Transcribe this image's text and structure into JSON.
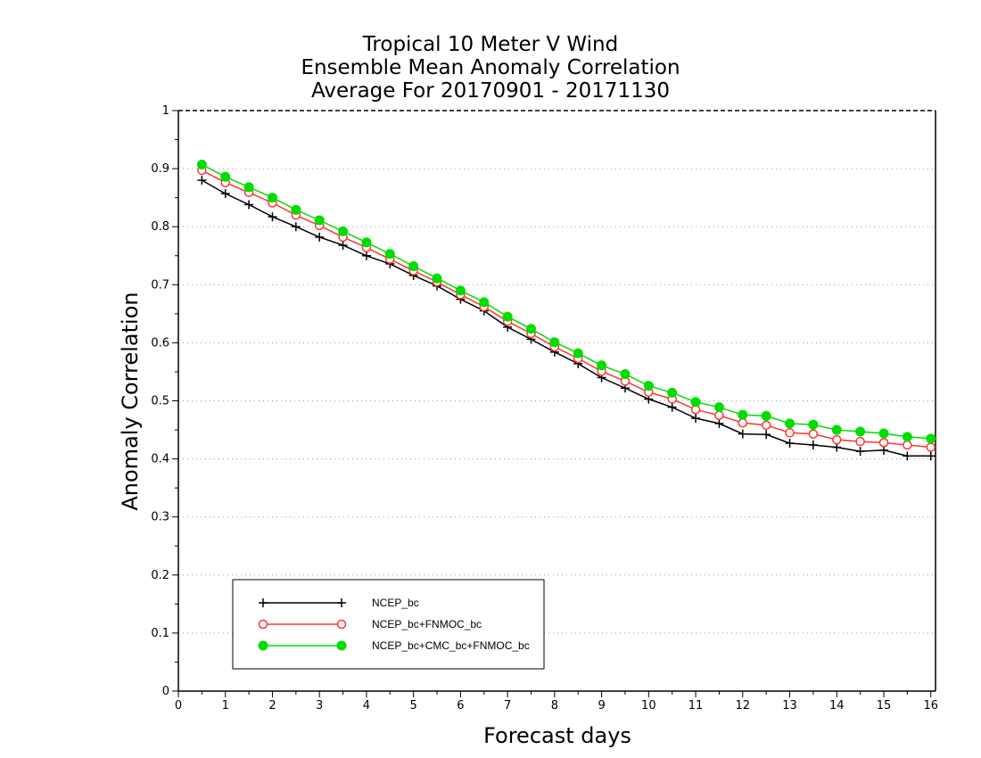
{
  "chart_data": {
    "type": "line",
    "title": [
      "Tropical 10 Meter V Wind",
      "Ensemble Mean Anomaly Correlation",
      "Average For 20170901 - 20171130"
    ],
    "xlabel": "Forecast days",
    "ylabel": "Anomaly Correlation",
    "xlim": [
      0,
      16.1
    ],
    "ylim": [
      0,
      1
    ],
    "x_ticks": [
      "0",
      "1",
      "2",
      "3",
      "4",
      "5",
      "6",
      "7",
      "8",
      "9",
      "10",
      "11",
      "12",
      "13",
      "14",
      "15",
      "16"
    ],
    "y_ticks": [
      "0",
      "0.1",
      "0.2",
      "0.3",
      "0.4",
      "0.5",
      "0.6",
      "0.7",
      "0.8",
      "0.9",
      "1"
    ],
    "grid": "horizontal dotted",
    "legend_position": "bottom-left",
    "x": [
      0.5,
      1,
      1.5,
      2,
      2.5,
      3,
      3.5,
      4,
      4.5,
      5,
      5.5,
      6,
      6.5,
      7,
      7.5,
      8,
      8.5,
      9,
      9.5,
      10,
      10.5,
      11,
      11.5,
      12,
      12.5,
      13,
      13.5,
      14,
      14.5,
      15,
      15.5,
      16
    ],
    "series": [
      {
        "name": "NCEP_bc",
        "color": "#000000",
        "marker": "plus",
        "values": [
          0.88,
          0.857,
          0.838,
          0.817,
          0.8,
          0.782,
          0.768,
          0.75,
          0.736,
          0.716,
          0.698,
          0.675,
          0.655,
          0.627,
          0.606,
          0.584,
          0.564,
          0.54,
          0.522,
          0.503,
          0.489,
          0.47,
          0.461,
          0.443,
          0.442,
          0.427,
          0.424,
          0.42,
          0.413,
          0.415,
          0.405,
          0.405
        ]
      },
      {
        "name": "NCEP_bc+FNMOC_bc",
        "color": "#ff3333",
        "marker": "open-circle",
        "values": [
          0.897,
          0.876,
          0.859,
          0.841,
          0.82,
          0.802,
          0.782,
          0.764,
          0.744,
          0.724,
          0.705,
          0.683,
          0.662,
          0.637,
          0.616,
          0.593,
          0.573,
          0.551,
          0.534,
          0.515,
          0.503,
          0.485,
          0.475,
          0.462,
          0.458,
          0.445,
          0.443,
          0.433,
          0.43,
          0.428,
          0.424,
          0.42
        ]
      },
      {
        "name": "NCEP_bc+CMC_bc+FNMOC_bc",
        "color": "#00dd00",
        "marker": "filled-circle",
        "values": [
          0.907,
          0.886,
          0.868,
          0.85,
          0.829,
          0.811,
          0.792,
          0.773,
          0.753,
          0.732,
          0.711,
          0.69,
          0.67,
          0.645,
          0.624,
          0.601,
          0.582,
          0.561,
          0.546,
          0.526,
          0.514,
          0.498,
          0.489,
          0.476,
          0.474,
          0.461,
          0.459,
          0.45,
          0.447,
          0.444,
          0.438,
          0.435
        ]
      }
    ]
  }
}
